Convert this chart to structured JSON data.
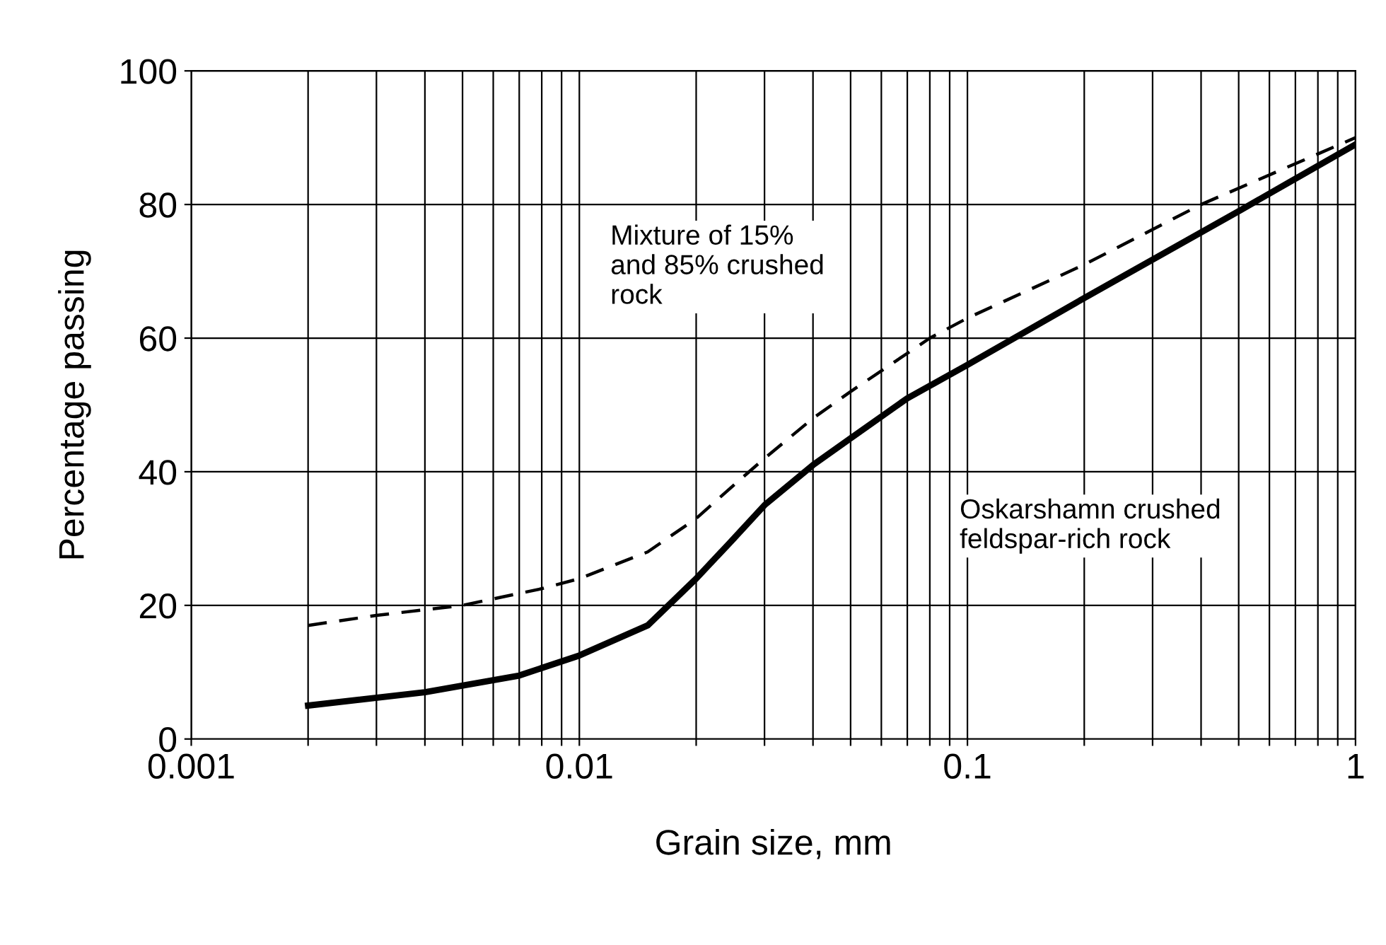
{
  "chart_data": {
    "type": "line",
    "log": "x",
    "xlabel": "Grain size, mm",
    "ylabel": "Percentage passing",
    "xlim": [
      0.001,
      1
    ],
    "ylim": [
      0,
      100
    ],
    "yticks": [
      0,
      20,
      40,
      60,
      80,
      100
    ],
    "xticks": [
      0.001,
      {
        "value": 0.002,
        "label": null
      },
      {
        "value": 0.003,
        "label": null
      },
      {
        "value": 0.004,
        "label": null
      },
      {
        "value": 0.005,
        "label": null
      },
      {
        "value": 0.006,
        "label": null
      },
      {
        "value": 0.007,
        "label": null
      },
      {
        "value": 0.008,
        "label": null
      },
      {
        "value": 0.009,
        "label": null
      },
      0.01,
      {
        "value": 0.02,
        "label": null
      },
      {
        "value": 0.03,
        "label": null
      },
      {
        "value": 0.04,
        "label": null
      },
      {
        "value": 0.05,
        "label": null
      },
      {
        "value": 0.06,
        "label": null
      },
      {
        "value": 0.07,
        "label": null
      },
      {
        "value": 0.08,
        "label": null
      },
      {
        "value": 0.09,
        "label": null
      },
      0.1,
      {
        "value": 0.2,
        "label": null
      },
      {
        "value": 0.3,
        "label": null
      },
      {
        "value": 0.4,
        "label": null
      },
      {
        "value": 0.5,
        "label": null
      },
      {
        "value": 0.6,
        "label": null
      },
      {
        "value": 0.7,
        "label": null
      },
      {
        "value": 0.8,
        "label": null
      },
      {
        "value": 0.9,
        "label": null
      },
      1
    ],
    "grid": true,
    "marker": "none",
    "series": [
      {
        "color": "#000000",
        "line_style": "dashed",
        "x": [
          0.002,
          0.003,
          0.005,
          0.008,
          0.01,
          0.015,
          0.02,
          0.025,
          0.03,
          0.04,
          0.05,
          0.08,
          0.1,
          0.2,
          0.4,
          1
        ],
        "values": [
          17,
          18.5,
          20,
          22.5,
          24,
          28,
          33,
          38,
          42,
          48,
          52,
          60,
          63,
          71,
          80,
          90
        ]
      },
      {
        "color": "#000000",
        "line_style": "solid",
        "x": [
          0.002,
          0.004,
          0.007,
          0.01,
          0.015,
          0.02,
          0.025,
          0.03,
          0.04,
          0.05,
          0.07,
          0.1,
          0.2,
          0.5,
          1
        ],
        "values": [
          5,
          7,
          9.5,
          12.5,
          17,
          24,
          30,
          35,
          41,
          45,
          51,
          56,
          66,
          79,
          89
        ]
      }
    ],
    "annotations": [
      "Mixture of 15%\nand 85% crushed\nrock",
      "Oskarshamn crushed\nfeldspar-rich rock"
    ]
  }
}
